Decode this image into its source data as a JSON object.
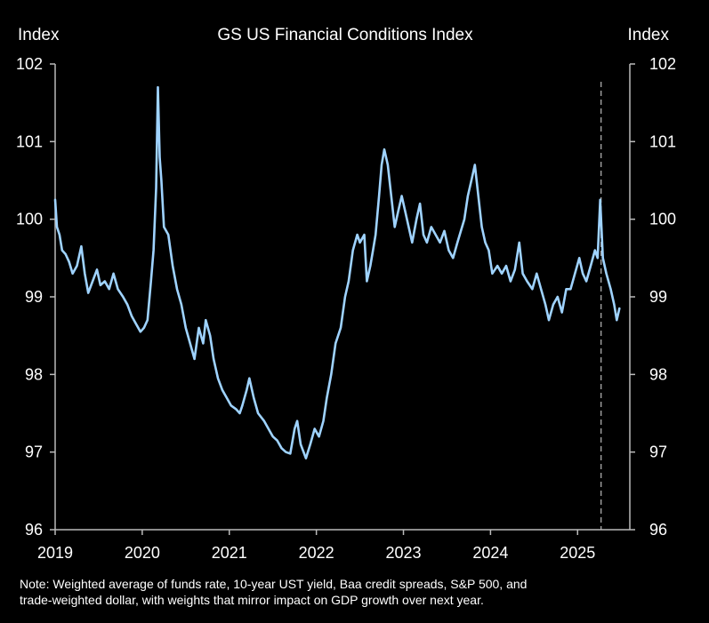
{
  "chart_data": {
    "type": "line",
    "title": "GS US Financial Conditions Index",
    "ylabel_left": "Index",
    "ylabel_right": "Index",
    "ylim": [
      96,
      102
    ],
    "yticks": [
      96,
      97,
      98,
      99,
      100,
      101,
      102
    ],
    "xlim": [
      2019,
      2025.6
    ],
    "xticks": [
      "2019",
      "2020",
      "2021",
      "2022",
      "2023",
      "2024",
      "2025"
    ],
    "grid": false,
    "vline_x": 2025.27,
    "series": [
      {
        "color": "#9fd3ff",
        "points": [
          [
            2019.0,
            100.25
          ],
          [
            2019.02,
            99.9
          ],
          [
            2019.05,
            99.8
          ],
          [
            2019.08,
            99.6
          ],
          [
            2019.12,
            99.55
          ],
          [
            2019.16,
            99.45
          ],
          [
            2019.2,
            99.3
          ],
          [
            2019.25,
            99.4
          ],
          [
            2019.3,
            99.65
          ],
          [
            2019.34,
            99.3
          ],
          [
            2019.38,
            99.05
          ],
          [
            2019.43,
            99.2
          ],
          [
            2019.48,
            99.35
          ],
          [
            2019.52,
            99.15
          ],
          [
            2019.57,
            99.2
          ],
          [
            2019.62,
            99.1
          ],
          [
            2019.67,
            99.3
          ],
          [
            2019.72,
            99.1
          ],
          [
            2019.78,
            99.0
          ],
          [
            2019.83,
            98.9
          ],
          [
            2019.88,
            98.75
          ],
          [
            2019.93,
            98.65
          ],
          [
            2019.98,
            98.55
          ],
          [
            2020.02,
            98.6
          ],
          [
            2020.06,
            98.7
          ],
          [
            2020.1,
            99.2
          ],
          [
            2020.13,
            99.6
          ],
          [
            2020.16,
            100.4
          ],
          [
            2020.18,
            101.7
          ],
          [
            2020.2,
            100.8
          ],
          [
            2020.22,
            100.5
          ],
          [
            2020.25,
            99.9
          ],
          [
            2020.3,
            99.8
          ],
          [
            2020.35,
            99.4
          ],
          [
            2020.4,
            99.1
          ],
          [
            2020.45,
            98.9
          ],
          [
            2020.5,
            98.6
          ],
          [
            2020.55,
            98.4
          ],
          [
            2020.6,
            98.2
          ],
          [
            2020.65,
            98.6
          ],
          [
            2020.7,
            98.4
          ],
          [
            2020.73,
            98.7
          ],
          [
            2020.78,
            98.5
          ],
          [
            2020.82,
            98.2
          ],
          [
            2020.87,
            97.95
          ],
          [
            2020.92,
            97.8
          ],
          [
            2020.97,
            97.7
          ],
          [
            2021.02,
            97.6
          ],
          [
            2021.08,
            97.55
          ],
          [
            2021.12,
            97.5
          ],
          [
            2021.15,
            97.6
          ],
          [
            2021.2,
            97.8
          ],
          [
            2021.23,
            97.95
          ],
          [
            2021.28,
            97.7
          ],
          [
            2021.33,
            97.5
          ],
          [
            2021.4,
            97.4
          ],
          [
            2021.45,
            97.3
          ],
          [
            2021.5,
            97.2
          ],
          [
            2021.55,
            97.15
          ],
          [
            2021.6,
            97.05
          ],
          [
            2021.65,
            97.0
          ],
          [
            2021.7,
            96.98
          ],
          [
            2021.75,
            97.3
          ],
          [
            2021.78,
            97.4
          ],
          [
            2021.82,
            97.1
          ],
          [
            2021.88,
            96.92
          ],
          [
            2021.93,
            97.1
          ],
          [
            2021.98,
            97.3
          ],
          [
            2022.03,
            97.2
          ],
          [
            2022.08,
            97.4
          ],
          [
            2022.12,
            97.7
          ],
          [
            2022.17,
            98.0
          ],
          [
            2022.22,
            98.4
          ],
          [
            2022.28,
            98.6
          ],
          [
            2022.33,
            99.0
          ],
          [
            2022.37,
            99.2
          ],
          [
            2022.42,
            99.6
          ],
          [
            2022.47,
            99.8
          ],
          [
            2022.5,
            99.7
          ],
          [
            2022.55,
            99.8
          ],
          [
            2022.58,
            99.2
          ],
          [
            2022.62,
            99.4
          ],
          [
            2022.65,
            99.6
          ],
          [
            2022.68,
            99.8
          ],
          [
            2022.72,
            100.3
          ],
          [
            2022.75,
            100.7
          ],
          [
            2022.78,
            100.9
          ],
          [
            2022.82,
            100.7
          ],
          [
            2022.86,
            100.3
          ],
          [
            2022.9,
            99.9
          ],
          [
            2022.94,
            100.1
          ],
          [
            2022.98,
            100.3
          ],
          [
            2023.02,
            100.1
          ],
          [
            2023.06,
            99.9
          ],
          [
            2023.1,
            99.7
          ],
          [
            2023.15,
            100.0
          ],
          [
            2023.19,
            100.2
          ],
          [
            2023.23,
            99.8
          ],
          [
            2023.27,
            99.7
          ],
          [
            2023.32,
            99.9
          ],
          [
            2023.37,
            99.8
          ],
          [
            2023.42,
            99.7
          ],
          [
            2023.47,
            99.85
          ],
          [
            2023.52,
            99.6
          ],
          [
            2023.57,
            99.5
          ],
          [
            2023.62,
            99.7
          ],
          [
            2023.66,
            99.85
          ],
          [
            2023.7,
            100.0
          ],
          [
            2023.74,
            100.3
          ],
          [
            2023.78,
            100.5
          ],
          [
            2023.82,
            100.7
          ],
          [
            2023.86,
            100.3
          ],
          [
            2023.9,
            99.9
          ],
          [
            2023.94,
            99.7
          ],
          [
            2023.98,
            99.6
          ],
          [
            2024.02,
            99.3
          ],
          [
            2024.08,
            99.4
          ],
          [
            2024.13,
            99.3
          ],
          [
            2024.18,
            99.4
          ],
          [
            2024.23,
            99.2
          ],
          [
            2024.28,
            99.35
          ],
          [
            2024.33,
            99.7
          ],
          [
            2024.37,
            99.3
          ],
          [
            2024.42,
            99.2
          ],
          [
            2024.48,
            99.1
          ],
          [
            2024.53,
            99.3
          ],
          [
            2024.58,
            99.1
          ],
          [
            2024.63,
            98.9
          ],
          [
            2024.67,
            98.7
          ],
          [
            2024.72,
            98.9
          ],
          [
            2024.77,
            99.0
          ],
          [
            2024.82,
            98.8
          ],
          [
            2024.87,
            99.1
          ],
          [
            2024.92,
            99.1
          ],
          [
            2024.97,
            99.3
          ],
          [
            2025.02,
            99.5
          ],
          [
            2025.06,
            99.3
          ],
          [
            2025.1,
            99.2
          ],
          [
            2025.15,
            99.4
          ],
          [
            2025.2,
            99.6
          ],
          [
            2025.23,
            99.5
          ],
          [
            2025.26,
            100.25
          ],
          [
            2025.29,
            99.5
          ],
          [
            2025.33,
            99.3
          ],
          [
            2025.38,
            99.1
          ],
          [
            2025.42,
            98.9
          ],
          [
            2025.45,
            98.7
          ],
          [
            2025.48,
            98.85
          ]
        ]
      }
    ]
  },
  "note": {
    "line1": "Note: Weighted average of funds rate, 10-year UST yield, Baa credit spreads, S&P 500, and",
    "line2": "trade-weighted dollar, with weights that mirror impact on GDP  growth over next year."
  }
}
